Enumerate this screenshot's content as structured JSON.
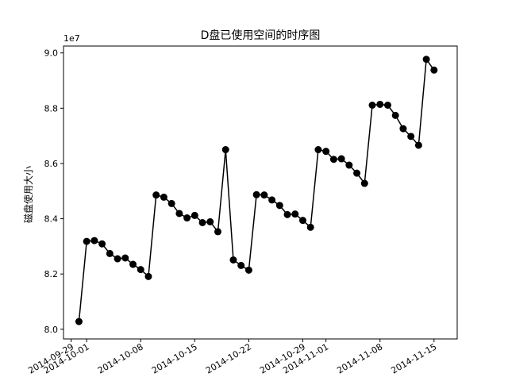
{
  "chart_data": {
    "type": "line",
    "title": "D盘已使用空间的时序图",
    "xlabel": "",
    "ylabel": "磁盘使用大小",
    "y_offset_label": "1e7",
    "y_scale_factor": 10000000,
    "ylim": [
      79650000,
      90250000
    ],
    "xlim": [
      "2014-09-28",
      "2014-11-18"
    ],
    "y_ticks": [
      80000000,
      82000000,
      84000000,
      86000000,
      88000000,
      90000000
    ],
    "y_tick_labels": [
      "8.0",
      "8.2",
      "8.4",
      "8.6",
      "8.8",
      "9.0"
    ],
    "x_ticks": [
      "2014-09-29",
      "2014-10-01",
      "2014-10-08",
      "2014-10-15",
      "2014-10-22",
      "2014-10-29",
      "2014-11-01",
      "2014-11-08",
      "2014-11-15"
    ],
    "x_tick_labels": [
      "2014-09-29",
      "2014-10-01",
      "2014-10-08",
      "2014-10-15",
      "2014-10-22",
      "2014-10-29",
      "2014-11-01",
      "2014-11-08",
      "2014-11-15"
    ],
    "grid": false,
    "series": [
      {
        "color": "#000000",
        "marker": "circle",
        "x": [
          "2014-09-30",
          "2014-10-01",
          "2014-10-02",
          "2014-10-03",
          "2014-10-04",
          "2014-10-05",
          "2014-10-06",
          "2014-10-07",
          "2014-10-08",
          "2014-10-09",
          "2014-10-10",
          "2014-10-11",
          "2014-10-12",
          "2014-10-13",
          "2014-10-14",
          "2014-10-15",
          "2014-10-16",
          "2014-10-17",
          "2014-10-18",
          "2014-10-19",
          "2014-10-20",
          "2014-10-21",
          "2014-10-22",
          "2014-10-23",
          "2014-10-24",
          "2014-10-25",
          "2014-10-26",
          "2014-10-27",
          "2014-10-28",
          "2014-10-29",
          "2014-10-30",
          "2014-10-31",
          "2014-11-01",
          "2014-11-02",
          "2014-11-03",
          "2014-11-04",
          "2014-11-05",
          "2014-11-06",
          "2014-11-07",
          "2014-11-08",
          "2014-11-09",
          "2014-11-10",
          "2014-11-11",
          "2014-11-12",
          "2014-11-13",
          "2014-11-14",
          "2014-11-15"
        ],
        "values": [
          80280000,
          83180000,
          83210000,
          83090000,
          82740000,
          82550000,
          82580000,
          82350000,
          82160000,
          81910000,
          84860000,
          84780000,
          84550000,
          84190000,
          84030000,
          84120000,
          83860000,
          83890000,
          83530000,
          86500000,
          82510000,
          82310000,
          82140000,
          84870000,
          84860000,
          84680000,
          84480000,
          84150000,
          84170000,
          83940000,
          83690000,
          86500000,
          86440000,
          86150000,
          86170000,
          85940000,
          85650000,
          85280000,
          88110000,
          88140000,
          88110000,
          87740000,
          87260000,
          86980000,
          86660000,
          89770000,
          89380000
        ]
      }
    ]
  }
}
